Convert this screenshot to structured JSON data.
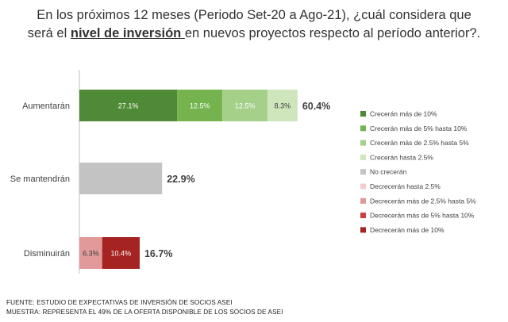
{
  "title": {
    "line1": "En los próximos 12 meses (Periodo Set-20 a Ago-21), ¿cuál considera que",
    "line2_before": "será el ",
    "line2_highlight": "nivel de inversión ",
    "line2_after": "en nuevos proyectos respecto al período anterior?."
  },
  "chart_data": {
    "type": "bar",
    "orientation": "horizontal",
    "stacked": true,
    "categories": [
      "Aumentarán",
      "Se mantendrán",
      "Disminuirán"
    ],
    "series": [
      {
        "name": "Crecerán más de 10%",
        "color": "#4f8a36",
        "values": [
          27.1,
          0,
          0
        ]
      },
      {
        "name": "Crecerán más de 5% hasta 10%",
        "color": "#74b34d",
        "values": [
          12.5,
          0,
          0
        ]
      },
      {
        "name": "Crecerán más de 2.5% hasta 5%",
        "color": "#a4d08a",
        "values": [
          12.5,
          0,
          0
        ]
      },
      {
        "name": "Crecerán hasta 2.5%",
        "color": "#cfe6bd",
        "values": [
          8.3,
          0,
          0
        ]
      },
      {
        "name": "No crecerán",
        "color": "#c3c3c3",
        "values": [
          0,
          22.9,
          0
        ]
      },
      {
        "name": "Decrecerán hasta 2.5%",
        "color": "#f4cccc",
        "values": [
          0,
          0,
          0
        ]
      },
      {
        "name": "Decrecerán más de 2.5% hasta 5%",
        "color": "#e19999",
        "values": [
          0,
          0,
          6.3
        ]
      },
      {
        "name": "Decrecerán más de 5% hasta 10%",
        "color": "#c94040",
        "values": [
          0,
          0,
          0
        ]
      },
      {
        "name": "Decrecerán más de 10%",
        "color": "#a52421",
        "values": [
          0,
          0,
          10.4
        ]
      }
    ],
    "segment_labels": [
      [
        "27.1%",
        "12.5%",
        "12.5%",
        "8.3%"
      ],
      [],
      [
        "6.3%",
        "10.4%"
      ]
    ],
    "totals": [
      "60.4%",
      "22.9%",
      "16.7%"
    ],
    "legend_position": "right",
    "grid": false
  },
  "footer": {
    "line1": "FUENTE: ESTUDIO DE EXPECTATIVAS DE INVERSIÓN DE SOCIOS ASEI",
    "line2": "MUESTRA: REPRESENTA EL 49% DE LA OFERTA DISPONIBLE DE LOS SOCIOS DE ASEI"
  }
}
